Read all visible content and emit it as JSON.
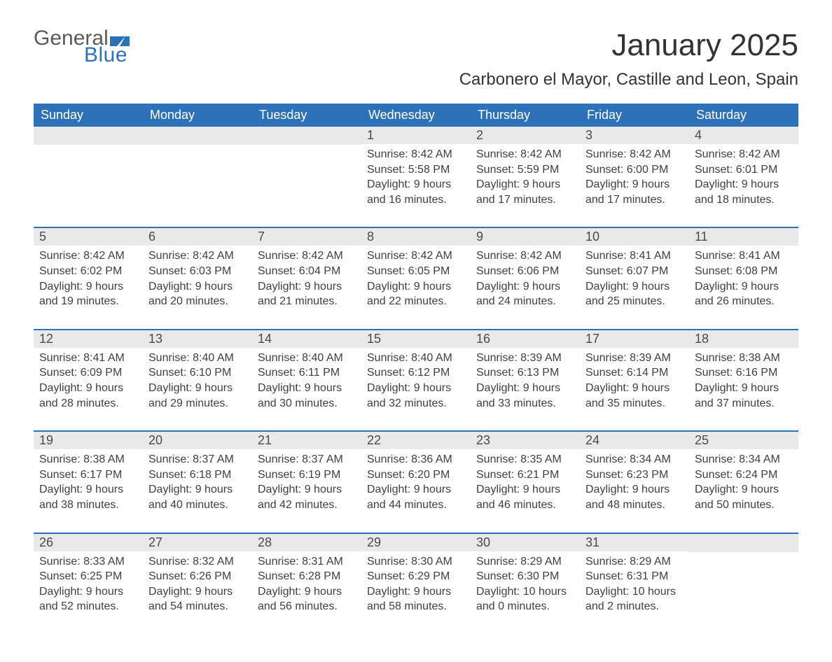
{
  "logo": {
    "word_top": "General",
    "word_bottom": "Blue",
    "color_top": "#5a5a5a",
    "color_bottom": "#2d72b8",
    "mark_color": "#2d72b8"
  },
  "title": "January 2025",
  "subtitle": "Carbonero el Mayor, Castille and Leon, Spain",
  "columns": [
    "Sunday",
    "Monday",
    "Tuesday",
    "Wednesday",
    "Thursday",
    "Friday",
    "Saturday"
  ],
  "colors": {
    "header_bg": "#2d72b8",
    "header_text": "#ffffff",
    "daynum_bg": "#e9e9e9",
    "row_divider": "#2d72b8",
    "body_text": "#3f3f3f",
    "page_bg": "#ffffff"
  },
  "typography": {
    "title_fontsize": 44,
    "subtitle_fontsize": 24,
    "header_fontsize": 18,
    "daynum_fontsize": 18,
    "content_fontsize": 16,
    "font_family": "Arial"
  },
  "weeks": [
    [
      {
        "day": "",
        "sunrise": "",
        "sunset": "",
        "daylight1": "",
        "daylight2": ""
      },
      {
        "day": "",
        "sunrise": "",
        "sunset": "",
        "daylight1": "",
        "daylight2": ""
      },
      {
        "day": "",
        "sunrise": "",
        "sunset": "",
        "daylight1": "",
        "daylight2": ""
      },
      {
        "day": "1",
        "sunrise": "Sunrise: 8:42 AM",
        "sunset": "Sunset: 5:58 PM",
        "daylight1": "Daylight: 9 hours",
        "daylight2": "and 16 minutes."
      },
      {
        "day": "2",
        "sunrise": "Sunrise: 8:42 AM",
        "sunset": "Sunset: 5:59 PM",
        "daylight1": "Daylight: 9 hours",
        "daylight2": "and 17 minutes."
      },
      {
        "day": "3",
        "sunrise": "Sunrise: 8:42 AM",
        "sunset": "Sunset: 6:00 PM",
        "daylight1": "Daylight: 9 hours",
        "daylight2": "and 17 minutes."
      },
      {
        "day": "4",
        "sunrise": "Sunrise: 8:42 AM",
        "sunset": "Sunset: 6:01 PM",
        "daylight1": "Daylight: 9 hours",
        "daylight2": "and 18 minutes."
      }
    ],
    [
      {
        "day": "5",
        "sunrise": "Sunrise: 8:42 AM",
        "sunset": "Sunset: 6:02 PM",
        "daylight1": "Daylight: 9 hours",
        "daylight2": "and 19 minutes."
      },
      {
        "day": "6",
        "sunrise": "Sunrise: 8:42 AM",
        "sunset": "Sunset: 6:03 PM",
        "daylight1": "Daylight: 9 hours",
        "daylight2": "and 20 minutes."
      },
      {
        "day": "7",
        "sunrise": "Sunrise: 8:42 AM",
        "sunset": "Sunset: 6:04 PM",
        "daylight1": "Daylight: 9 hours",
        "daylight2": "and 21 minutes."
      },
      {
        "day": "8",
        "sunrise": "Sunrise: 8:42 AM",
        "sunset": "Sunset: 6:05 PM",
        "daylight1": "Daylight: 9 hours",
        "daylight2": "and 22 minutes."
      },
      {
        "day": "9",
        "sunrise": "Sunrise: 8:42 AM",
        "sunset": "Sunset: 6:06 PM",
        "daylight1": "Daylight: 9 hours",
        "daylight2": "and 24 minutes."
      },
      {
        "day": "10",
        "sunrise": "Sunrise: 8:41 AM",
        "sunset": "Sunset: 6:07 PM",
        "daylight1": "Daylight: 9 hours",
        "daylight2": "and 25 minutes."
      },
      {
        "day": "11",
        "sunrise": "Sunrise: 8:41 AM",
        "sunset": "Sunset: 6:08 PM",
        "daylight1": "Daylight: 9 hours",
        "daylight2": "and 26 minutes."
      }
    ],
    [
      {
        "day": "12",
        "sunrise": "Sunrise: 8:41 AM",
        "sunset": "Sunset: 6:09 PM",
        "daylight1": "Daylight: 9 hours",
        "daylight2": "and 28 minutes."
      },
      {
        "day": "13",
        "sunrise": "Sunrise: 8:40 AM",
        "sunset": "Sunset: 6:10 PM",
        "daylight1": "Daylight: 9 hours",
        "daylight2": "and 29 minutes."
      },
      {
        "day": "14",
        "sunrise": "Sunrise: 8:40 AM",
        "sunset": "Sunset: 6:11 PM",
        "daylight1": "Daylight: 9 hours",
        "daylight2": "and 30 minutes."
      },
      {
        "day": "15",
        "sunrise": "Sunrise: 8:40 AM",
        "sunset": "Sunset: 6:12 PM",
        "daylight1": "Daylight: 9 hours",
        "daylight2": "and 32 minutes."
      },
      {
        "day": "16",
        "sunrise": "Sunrise: 8:39 AM",
        "sunset": "Sunset: 6:13 PM",
        "daylight1": "Daylight: 9 hours",
        "daylight2": "and 33 minutes."
      },
      {
        "day": "17",
        "sunrise": "Sunrise: 8:39 AM",
        "sunset": "Sunset: 6:14 PM",
        "daylight1": "Daylight: 9 hours",
        "daylight2": "and 35 minutes."
      },
      {
        "day": "18",
        "sunrise": "Sunrise: 8:38 AM",
        "sunset": "Sunset: 6:16 PM",
        "daylight1": "Daylight: 9 hours",
        "daylight2": "and 37 minutes."
      }
    ],
    [
      {
        "day": "19",
        "sunrise": "Sunrise: 8:38 AM",
        "sunset": "Sunset: 6:17 PM",
        "daylight1": "Daylight: 9 hours",
        "daylight2": "and 38 minutes."
      },
      {
        "day": "20",
        "sunrise": "Sunrise: 8:37 AM",
        "sunset": "Sunset: 6:18 PM",
        "daylight1": "Daylight: 9 hours",
        "daylight2": "and 40 minutes."
      },
      {
        "day": "21",
        "sunrise": "Sunrise: 8:37 AM",
        "sunset": "Sunset: 6:19 PM",
        "daylight1": "Daylight: 9 hours",
        "daylight2": "and 42 minutes."
      },
      {
        "day": "22",
        "sunrise": "Sunrise: 8:36 AM",
        "sunset": "Sunset: 6:20 PM",
        "daylight1": "Daylight: 9 hours",
        "daylight2": "and 44 minutes."
      },
      {
        "day": "23",
        "sunrise": "Sunrise: 8:35 AM",
        "sunset": "Sunset: 6:21 PM",
        "daylight1": "Daylight: 9 hours",
        "daylight2": "and 46 minutes."
      },
      {
        "day": "24",
        "sunrise": "Sunrise: 8:34 AM",
        "sunset": "Sunset: 6:23 PM",
        "daylight1": "Daylight: 9 hours",
        "daylight2": "and 48 minutes."
      },
      {
        "day": "25",
        "sunrise": "Sunrise: 8:34 AM",
        "sunset": "Sunset: 6:24 PM",
        "daylight1": "Daylight: 9 hours",
        "daylight2": "and 50 minutes."
      }
    ],
    [
      {
        "day": "26",
        "sunrise": "Sunrise: 8:33 AM",
        "sunset": "Sunset: 6:25 PM",
        "daylight1": "Daylight: 9 hours",
        "daylight2": "and 52 minutes."
      },
      {
        "day": "27",
        "sunrise": "Sunrise: 8:32 AM",
        "sunset": "Sunset: 6:26 PM",
        "daylight1": "Daylight: 9 hours",
        "daylight2": "and 54 minutes."
      },
      {
        "day": "28",
        "sunrise": "Sunrise: 8:31 AM",
        "sunset": "Sunset: 6:28 PM",
        "daylight1": "Daylight: 9 hours",
        "daylight2": "and 56 minutes."
      },
      {
        "day": "29",
        "sunrise": "Sunrise: 8:30 AM",
        "sunset": "Sunset: 6:29 PM",
        "daylight1": "Daylight: 9 hours",
        "daylight2": "and 58 minutes."
      },
      {
        "day": "30",
        "sunrise": "Sunrise: 8:29 AM",
        "sunset": "Sunset: 6:30 PM",
        "daylight1": "Daylight: 10 hours",
        "daylight2": "and 0 minutes."
      },
      {
        "day": "31",
        "sunrise": "Sunrise: 8:29 AM",
        "sunset": "Sunset: 6:31 PM",
        "daylight1": "Daylight: 10 hours",
        "daylight2": "and 2 minutes."
      },
      {
        "day": "",
        "sunrise": "",
        "sunset": "",
        "daylight1": "",
        "daylight2": ""
      }
    ]
  ]
}
